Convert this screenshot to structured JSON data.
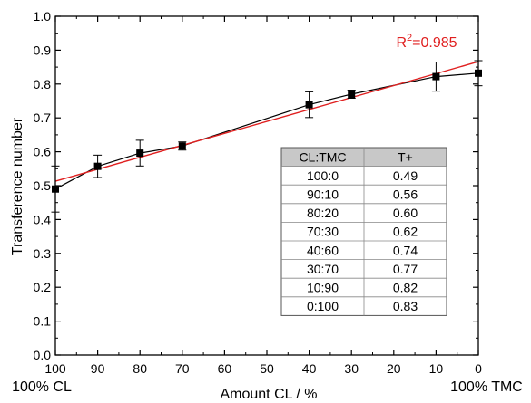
{
  "chart_data": {
    "type": "line",
    "xlabel": "Amount CL / %",
    "ylabel": "Transference number",
    "x_reversed": true,
    "xlim": [
      100,
      0
    ],
    "ylim": [
      0.0,
      1.0
    ],
    "x_ticks": [
      "100",
      "90",
      "80",
      "70",
      "60",
      "50",
      "40",
      "30",
      "20",
      "10",
      "0"
    ],
    "y_ticks": [
      "0.0",
      "0.1",
      "0.2",
      "0.3",
      "0.4",
      "0.5",
      "0.6",
      "0.7",
      "0.8",
      "0.9",
      "1.0"
    ],
    "x_end_labels": {
      "left": "100% CL",
      "right": "100% TMC"
    },
    "grid": false,
    "series": [
      {
        "color": "#000000",
        "marker": "square",
        "points": [
          {
            "x": 100,
            "y": 0.49,
            "err": 0.068
          },
          {
            "x": 90,
            "y": 0.557,
            "err": 0.033
          },
          {
            "x": 80,
            "y": 0.596,
            "err": 0.038
          },
          {
            "x": 70,
            "y": 0.617,
            "err": 0.012
          },
          {
            "x": 40,
            "y": 0.739,
            "err": 0.038
          },
          {
            "x": 30,
            "y": 0.77,
            "err": 0.012
          },
          {
            "x": 10,
            "y": 0.822,
            "err": 0.043
          },
          {
            "x": 0,
            "y": 0.832,
            "err": 0.037
          }
        ]
      },
      {
        "color": "#e02020",
        "points": [
          {
            "x": 100,
            "y": 0.513
          },
          {
            "x": 0,
            "y": 0.866
          }
        ]
      }
    ],
    "annotation": {
      "label": "R",
      "sup": "2",
      "value": "=0.985",
      "color": "#e02020"
    },
    "table": {
      "headers": [
        "CL:TMC",
        "T+"
      ],
      "rows": [
        [
          "100:0",
          "0.49"
        ],
        [
          "90:10",
          "0.56"
        ],
        [
          "80:20",
          "0.60"
        ],
        [
          "70:30",
          "0.62"
        ],
        [
          "40:60",
          "0.74"
        ],
        [
          "30:70",
          "0.77"
        ],
        [
          "10:90",
          "0.82"
        ],
        [
          "0:100",
          "0.83"
        ]
      ]
    }
  }
}
